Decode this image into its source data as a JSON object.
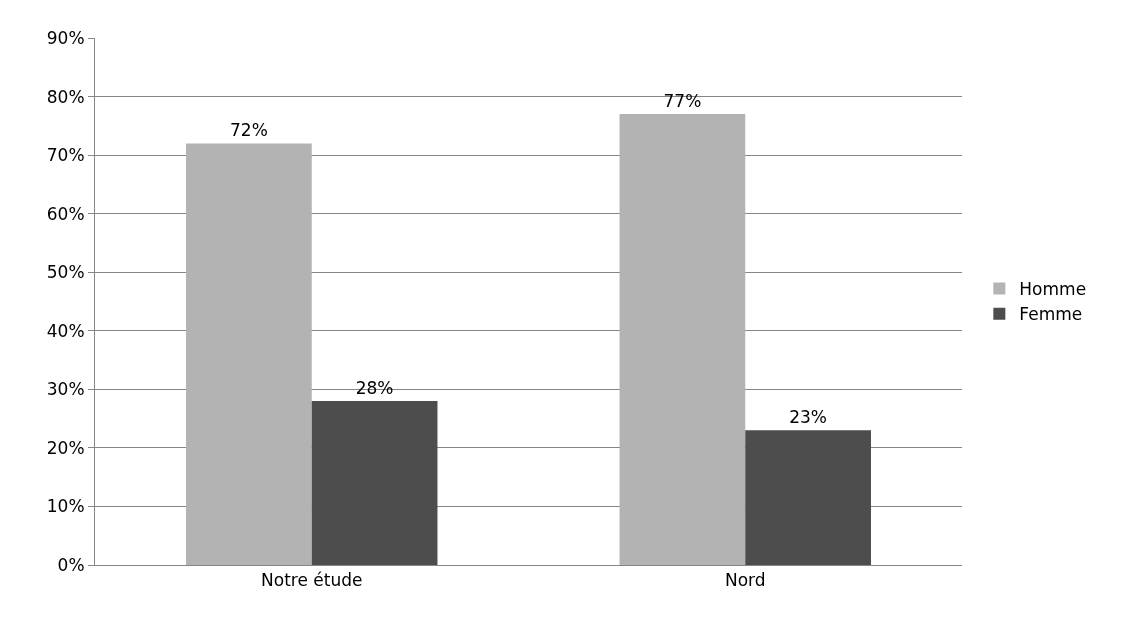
{
  "chart_data": {
    "type": "bar",
    "categories": [
      "Notre étude",
      "Nord"
    ],
    "series": [
      {
        "name": "Homme",
        "color": "#b3b3b3",
        "values": [
          72,
          77
        ],
        "value_labels": [
          "72%",
          "77%"
        ]
      },
      {
        "name": "Femme",
        "color": "#4d4d4d",
        "values": [
          28,
          23
        ],
        "value_labels": [
          "28%",
          "23%"
        ]
      }
    ],
    "ylim": [
      0,
      90
    ],
    "yticks": [
      {
        "value": 0,
        "label": "0%"
      },
      {
        "value": 10,
        "label": "10%"
      },
      {
        "value": 20,
        "label": "20%"
      },
      {
        "value": 30,
        "label": "30%"
      },
      {
        "value": 40,
        "label": "40%"
      },
      {
        "value": 50,
        "label": "50%"
      },
      {
        "value": 60,
        "label": "60%"
      },
      {
        "value": 70,
        "label": "70%"
      },
      {
        "value": 80,
        "label": "80%"
      },
      {
        "value": 90,
        "label": "90%"
      }
    ],
    "grid": "y",
    "legend": "right"
  }
}
